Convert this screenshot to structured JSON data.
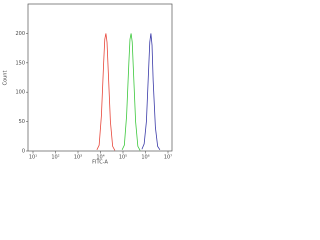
{
  "chart_data": {
    "type": "line",
    "x_label": "FITC-A",
    "y_label": "Count",
    "log_x": true,
    "xlim": [
      10,
      10000000
    ],
    "xticks": [
      {
        "value": 10,
        "label": "10¹"
      },
      {
        "value": 100,
        "label": "10²"
      },
      {
        "value": 1000,
        "label": "10³"
      },
      {
        "value": 10000,
        "label": "10⁴"
      },
      {
        "value": 100000,
        "label": "10⁵"
      },
      {
        "value": 1000000,
        "label": "10⁶"
      },
      {
        "value": 10000000,
        "label": "10⁷"
      }
    ],
    "ylim": [
      0,
      250
    ],
    "yticks": [
      0,
      50,
      100,
      150,
      200
    ],
    "series": [
      {
        "color": "#e8463a",
        "x": [
          6918,
          8710,
          10965,
          13804,
          15488,
          17378,
          19498,
          21878,
          27542,
          34674,
          43652
        ],
        "values": [
          2,
          10,
          60,
          150,
          190,
          200,
          185,
          140,
          50,
          8,
          1
        ]
      },
      {
        "color": "#3cc83c",
        "x": [
          91201,
          114815,
          144544,
          181970,
          204174,
          229087,
          257040,
          288403,
          363078,
          457088,
          575440
        ],
        "values": [
          2,
          10,
          60,
          150,
          190,
          200,
          185,
          140,
          50,
          8,
          1
        ]
      },
      {
        "color": "#3a3aa8",
        "x": [
          691831,
          870964,
          1096478,
          1380384,
          1548817,
          1737801,
          1949845,
          2187762,
          2754229,
          3467369,
          4365158
        ],
        "values": [
          3,
          12,
          50,
          140,
          185,
          200,
          180,
          120,
          40,
          8,
          2
        ]
      }
    ]
  }
}
